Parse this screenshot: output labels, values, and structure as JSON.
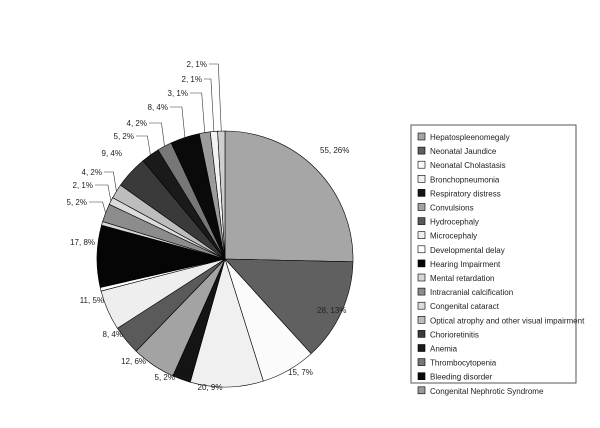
{
  "chart_data": {
    "type": "pie",
    "title": "",
    "legend_position": "right",
    "series": [
      {
        "category": "Hepatospleenomegaly",
        "value": 55,
        "label": "55, 26%",
        "color": "#a6a6a6"
      },
      {
        "category": "Neonatal Jaundice",
        "value": 28,
        "label": "28, 13%",
        "color": "#606060"
      },
      {
        "category": "Neonatal Cholastasis",
        "value": 15,
        "label": "15, 7%",
        "color": "#fbfbfb"
      },
      {
        "category": "Bronchopneumonia",
        "value": 20,
        "label": "20, 9%",
        "color": "#f0f0f0"
      },
      {
        "category": "Respiratory distress",
        "value": 5,
        "label": "5, 2%",
        "color": "#141414"
      },
      {
        "category": "Convulsions",
        "value": 12,
        "label": "12, 6%",
        "color": "#a3a3a3"
      },
      {
        "category": "Hydrocephaly",
        "value": 8,
        "label": "8, 4%",
        "color": "#5a5a5a"
      },
      {
        "category": "Microcephaly",
        "value": 11,
        "label": "11, 5%",
        "color": "#eeeeee"
      },
      {
        "category": "Developmental delay",
        "value": 1,
        "label": "",
        "color": "#ffffff"
      },
      {
        "category": "Hearing Impairment",
        "value": 17,
        "label": "17, 8%",
        "color": "#050505"
      },
      {
        "category": "Mental retardation",
        "value": 1,
        "label": "",
        "color": "#d6d6d6"
      },
      {
        "category": "Intracranial calcification",
        "value": 5,
        "label": "5, 2%",
        "color": "#8c8c8c"
      },
      {
        "category": "Congenital cataract",
        "value": 2,
        "label": "2, 1%",
        "color": "#dcdcdc"
      },
      {
        "category": "Optical atrophy and other visual impairment",
        "value": 4,
        "label": "4, 2%",
        "color": "#bdbdbd"
      },
      {
        "category": "Chorioretinitis",
        "value": 9,
        "label": "9, 4%",
        "color": "#3a3a3a"
      },
      {
        "category": "Anemia",
        "value": 5,
        "label": "5, 2%",
        "color": "#1a1a1a"
      },
      {
        "category": "Thrombocytopenia",
        "value": 4,
        "label": "4, 2%",
        "color": "#777777"
      },
      {
        "category": "Bleeding disorder",
        "value": 8,
        "label": "8, 4%",
        "color": "#0a0a0a"
      },
      {
        "category": "Congenital Nephrotic Syndrome",
        "value": 3,
        "label": "3, 1%",
        "color": "#9b9b9b"
      },
      {
        "category": "",
        "value": 2,
        "label": "2, 1%",
        "color": "#f2f2f2"
      },
      {
        "category": "",
        "value": 2,
        "label": "2, 1%",
        "color": "#cfcfcf"
      }
    ]
  }
}
